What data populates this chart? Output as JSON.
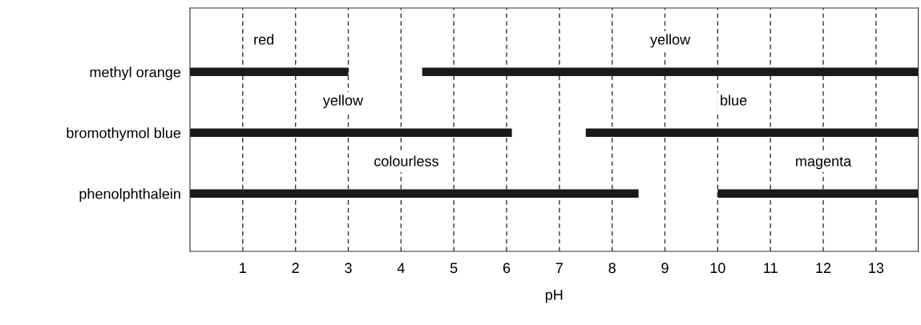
{
  "chart_data": {
    "type": "bar",
    "orientation": "horizontal",
    "xlabel": "pH",
    "categories": [
      "methyl orange",
      "bromothymol blue",
      "phenolphthalein"
    ],
    "series": [
      {
        "color": "#1a1a1a",
        "base": [
          0,
          0,
          0
        ],
        "values": [
          3,
          6.1,
          8.5
        ]
      },
      {
        "color": "#1a1a1a",
        "base": [
          4.4,
          7.5,
          10
        ],
        "values": [
          9.4,
          6.3,
          3.8
        ]
      }
    ],
    "xlim": [
      0,
      13.8
    ],
    "xticks": [
      1,
      2,
      3,
      4,
      5,
      6,
      7,
      8,
      9,
      10,
      11,
      12,
      13
    ],
    "grid": "x",
    "tick_labels": "x",
    "annotations": [
      {
        "text": "red",
        "x": 1.4,
        "y": "methyl orange"
      },
      {
        "text": "yellow",
        "x": 9.1,
        "y": "methyl orange"
      },
      {
        "text": "yellow",
        "x": 2.9,
        "y": "bromothymol blue"
      },
      {
        "text": "blue",
        "x": 10.3,
        "y": "bromothymol blue"
      },
      {
        "text": "colourless",
        "x": 4.1,
        "y": "phenolphthalein"
      },
      {
        "text": "magenta",
        "x": 12.0,
        "y": "phenolphthalein"
      }
    ]
  }
}
